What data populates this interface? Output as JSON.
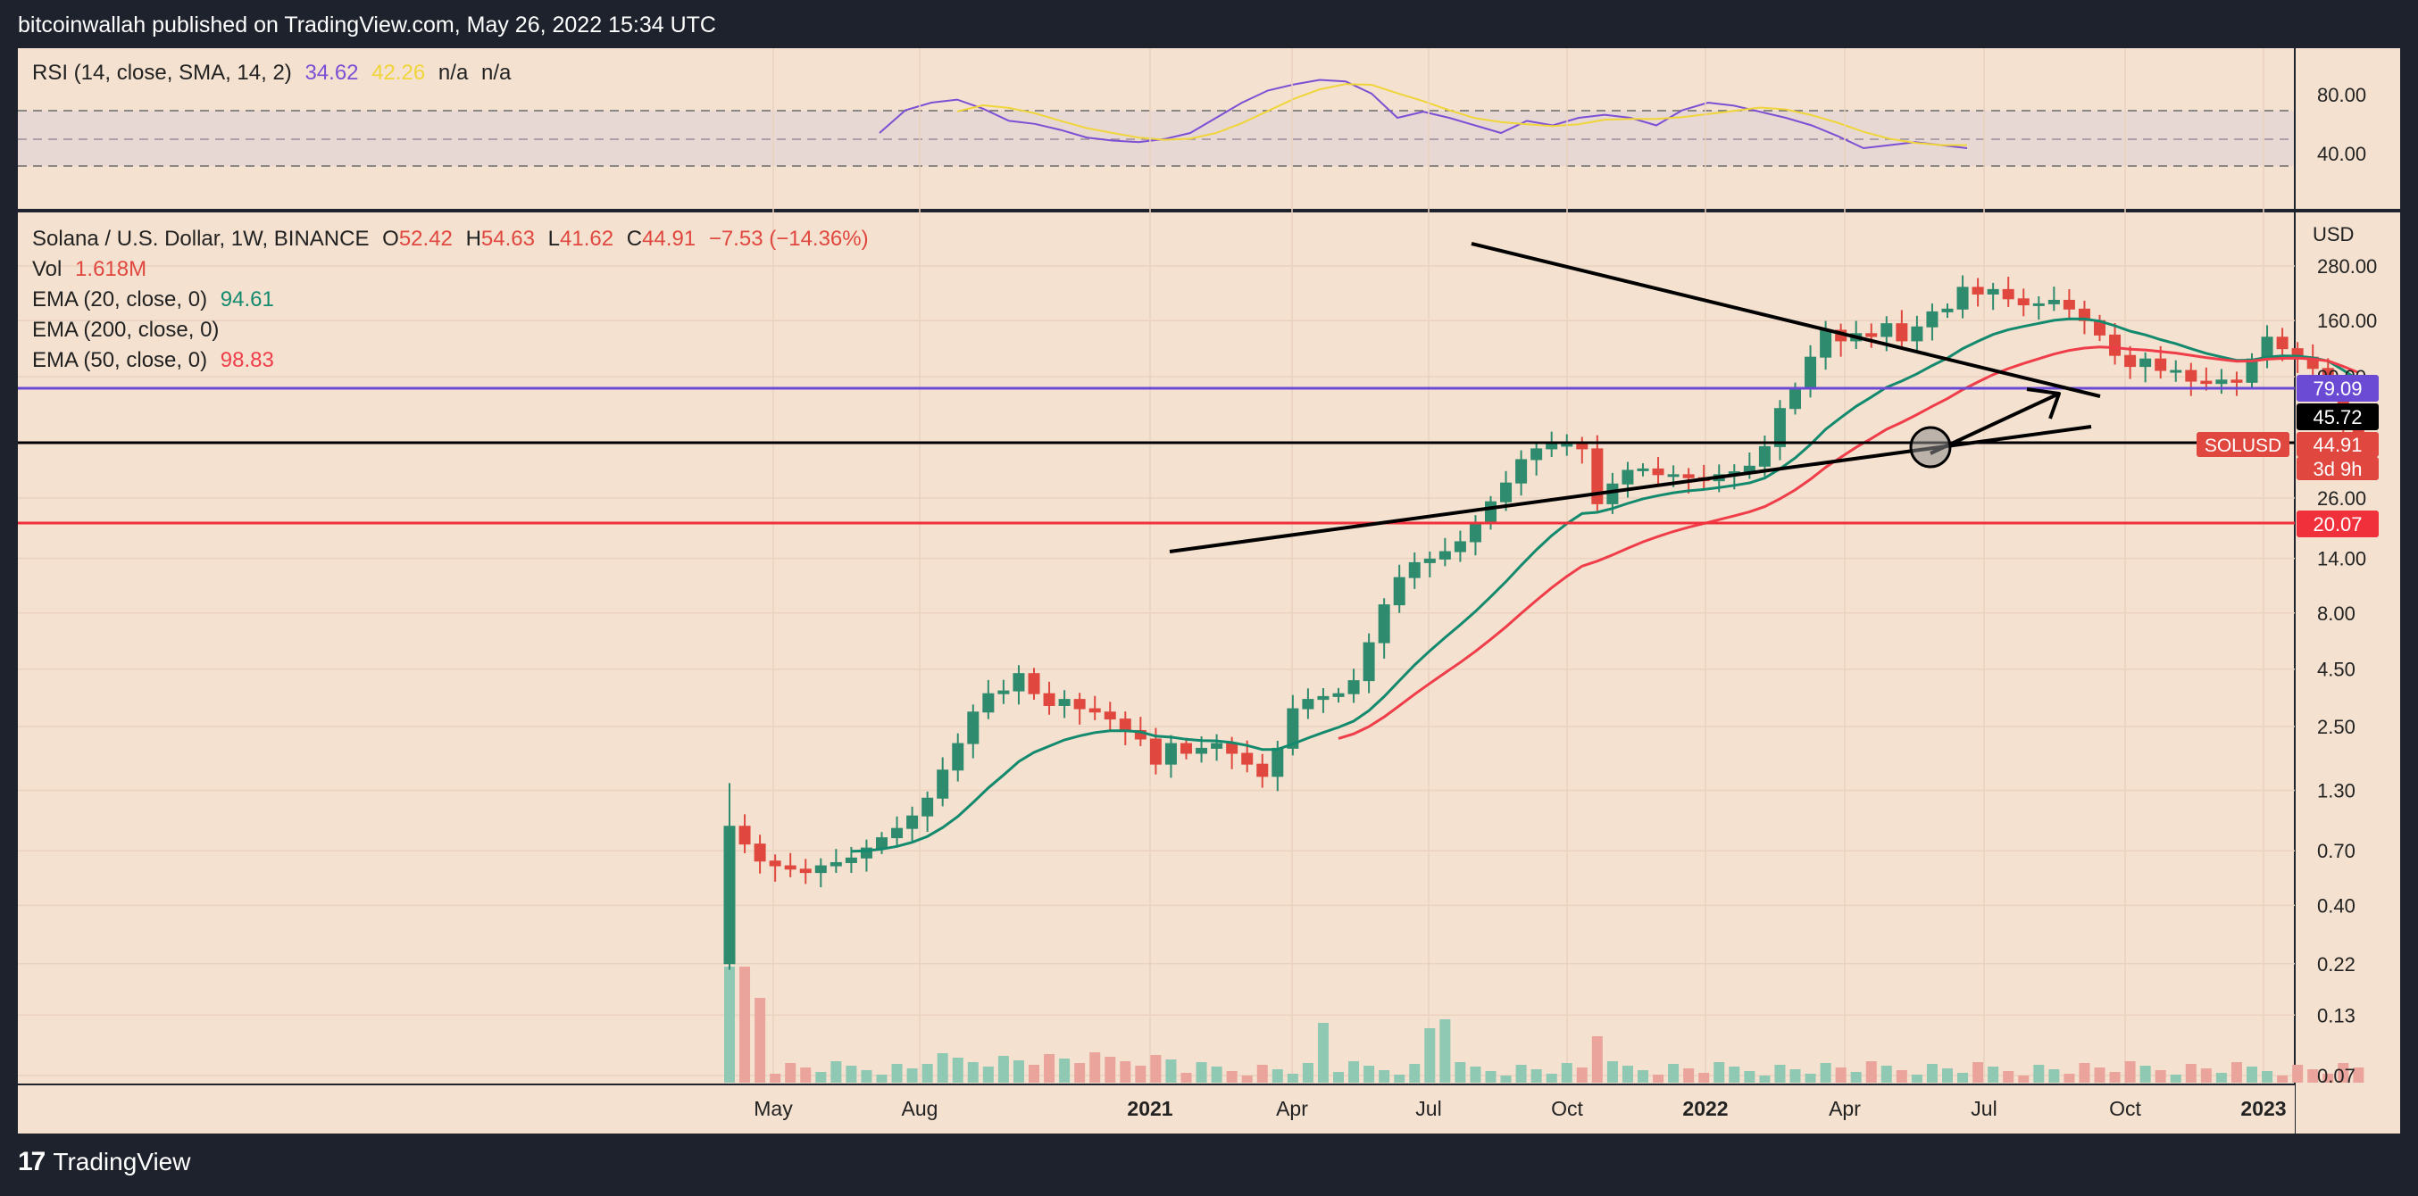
{
  "header": {
    "publisher_line": "bitcoinwallah published on TradingView.com, May 26, 2022 15:34 UTC"
  },
  "footer": {
    "brand": "TradingView",
    "logo_glyph": "17"
  },
  "colors": {
    "background": "#f4e1cf",
    "frame": "#1e222d",
    "bull": "#2e8b6e",
    "bear": "#e0483f",
    "ema20": "#138a6e",
    "ema50": "#f03d4a",
    "rsi": "#7d4fd4",
    "rsi_sma": "#f0d53a",
    "purple_line": "#6b4bd4",
    "red_line": "#f0303a"
  },
  "rsi_panel": {
    "label": "RSI (14, close, SMA, 14, 2)",
    "rsi_value": "34.62",
    "sma_value": "42.26",
    "na1": "n/a",
    "na2": "n/a",
    "ticks": [
      "80.00",
      "40.00"
    ]
  },
  "main_panel": {
    "symbol_line": "Solana / U.S. Dollar, 1W, BINANCE",
    "ohlc": {
      "o_label": "O",
      "o": "52.42",
      "h_label": "H",
      "h": "54.63",
      "l_label": "L",
      "l": "41.62",
      "c_label": "C",
      "c": "44.91",
      "change": "−7.53 (−14.36%)"
    },
    "vol": {
      "label": "Vol",
      "value": "1.618M"
    },
    "ema20": {
      "label": "EMA (20, close, 0)",
      "value": "94.61"
    },
    "ema200": {
      "label": "EMA (200, close, 0)"
    },
    "ema50": {
      "label": "EMA (50, close, 0)",
      "value": "98.83"
    },
    "currency": "USD",
    "symbol_tag": "SOLUSD",
    "price_labels": {
      "level_purple": "79.09",
      "level_black": "45.72",
      "last_price": "44.91",
      "countdown": "3d 9h",
      "level_red": "20.07"
    }
  },
  "chart_data": {
    "type": "candlestick",
    "y_scale": "log",
    "ylim": [
      0.065,
      330
    ],
    "y_ticks": [
      "280.00",
      "160.00",
      "90.00",
      "26.00",
      "14.00",
      "8.00",
      "4.50",
      "2.50",
      "1.30",
      "0.70",
      "0.40",
      "0.22",
      "0.13",
      "0.07"
    ],
    "x_ticks": [
      "May",
      "Aug",
      "2021",
      "Apr",
      "Jul",
      "Oct",
      "2022",
      "Apr",
      "Jul",
      "Oct",
      "2023"
    ],
    "horizontal_levels": [
      79.09,
      45.72,
      20.07
    ],
    "candles_close": [
      0.9,
      0.75,
      0.63,
      0.6,
      0.58,
      0.56,
      0.6,
      0.62,
      0.65,
      0.72,
      0.8,
      0.88,
      1.0,
      1.2,
      1.6,
      2.1,
      2.9,
      3.5,
      3.6,
      4.3,
      3.5,
      3.1,
      3.3,
      3.0,
      2.9,
      2.7,
      2.4,
      2.2,
      1.7,
      2.1,
      1.9,
      2.0,
      2.1,
      1.9,
      1.7,
      1.5,
      2.0,
      3.0,
      3.3,
      3.4,
      3.5,
      4.0,
      5.9,
      8.7,
      11.5,
      13.4,
      13.9,
      15.0,
      16.6,
      20.0,
      25.0,
      30.3,
      38.5,
      43.0,
      45.0,
      45.0,
      43.0,
      24.5,
      30.0,
      34.5,
      35.0,
      33.0,
      33.0,
      32.0,
      31.0,
      33.0,
      34.0,
      36.0,
      44.0,
      65.0,
      80.0,
      110.0,
      145.0,
      130.0,
      140.0,
      136.0,
      155.0,
      130.0,
      150.0,
      175.0,
      180.0,
      225.0,
      210.0,
      220.0,
      200.0,
      188.0,
      190.0,
      197.0,
      180.0,
      160.0,
      138.0,
      112.0,
      100.0,
      108.0,
      96.0,
      96.0,
      86.0,
      84.0,
      87.0,
      85.0,
      108.0,
      135.0,
      120.0,
      110.0,
      98.0,
      85.0,
      52.4,
      44.9
    ],
    "series": [
      {
        "name": "Vol"
      },
      {
        "name": "EMA (20, close, 0)"
      },
      {
        "name": "EMA (50, close, 0)"
      },
      {
        "name": "RSI (14, close, SMA, 14, 2)"
      }
    ]
  }
}
